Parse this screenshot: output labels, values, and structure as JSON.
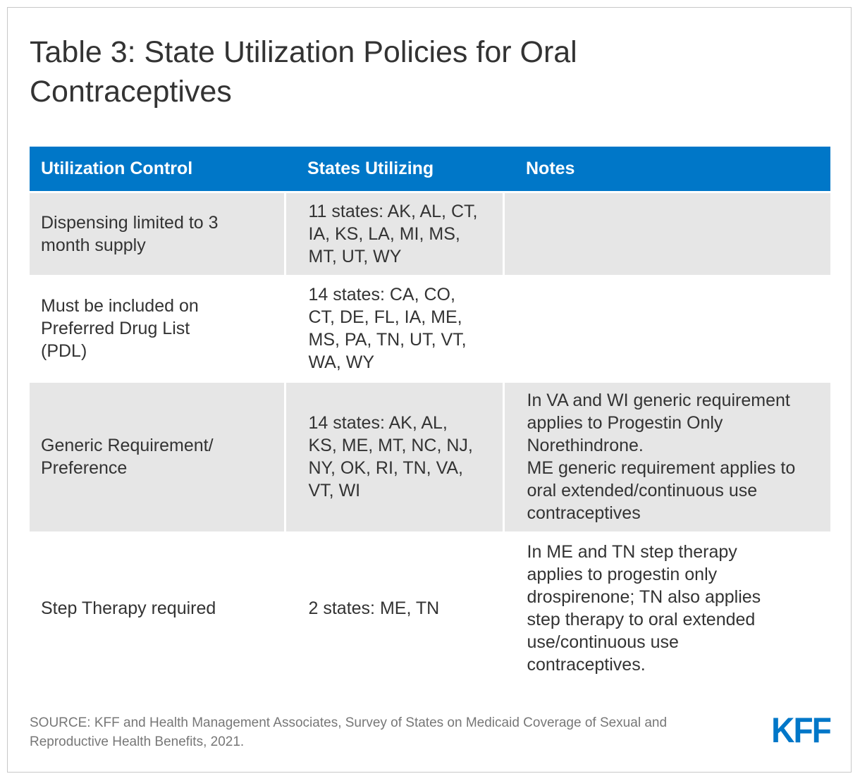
{
  "title": "Table 3: State Utilization Policies for Oral Contraceptives",
  "table": {
    "headers": [
      "Utilization Control",
      "States Utilizing",
      "Notes"
    ],
    "rows": [
      {
        "control": "Dispensing limited to 3 month supply",
        "states": "11 states: AK, AL, CT, IA, KS, LA, MI, MS, MT, UT, WY",
        "notes": ""
      },
      {
        "control": "Must be included on Preferred Drug List (PDL)",
        "states": "14 states: CA, CO, CT, DE, FL, IA, ME, MS, PA, TN, UT, VT, WA, WY",
        "notes": ""
      },
      {
        "control": "Generic Requirement/ Preference",
        "states": "14 states: AK, AL, KS, ME, MT, NC, NJ, NY, OK, RI, TN, VA, VT, WI",
        "notes": "In VA and WI generic requirement applies to Progestin Only Norethindrone.",
        "notes2": "ME generic requirement applies to oral extended/continuous use contraceptives"
      },
      {
        "control": "Step Therapy required",
        "states": "2 states: ME, TN",
        "notes": "In ME and TN step therapy applies to progestin only drospirenone; TN also applies step therapy to oral extended use/continuous use contraceptives."
      }
    ]
  },
  "source": "SOURCE: KFF and Health Management Associates, Survey of States on Medicaid Coverage of Sexual and Reproductive Health Benefits, 2021.",
  "logo": "KFF",
  "colors": {
    "header_bg": "#0077c8",
    "row_shade": "#e6e6e6",
    "text": "#333333",
    "source_text": "#777777"
  }
}
